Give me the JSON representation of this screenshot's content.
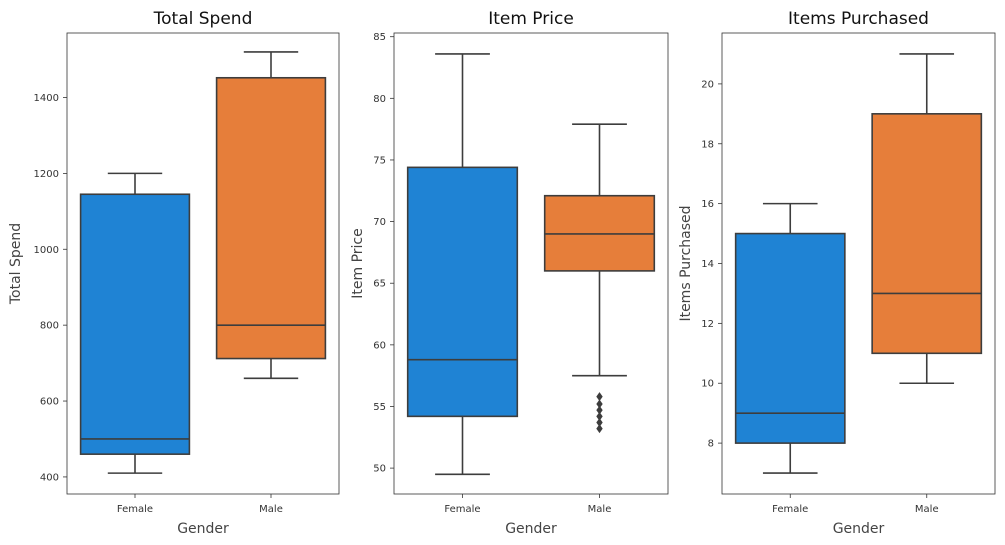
{
  "chart_data": [
    {
      "type": "box",
      "title": "Total Spend",
      "xlabel": "Gender",
      "ylabel": "Total Spend",
      "categories": [
        "Female",
        "Male"
      ],
      "ylim": [
        355,
        1570
      ],
      "yticks": [
        400,
        600,
        800,
        1000,
        1200,
        1400
      ],
      "boxes": [
        {
          "category": "Female",
          "min": 410,
          "q1": 460,
          "median": 500,
          "q3": 1145,
          "max": 1200,
          "outliers": []
        },
        {
          "category": "Male",
          "min": 660,
          "q1": 712,
          "median": 800,
          "q3": 1452,
          "max": 1520,
          "outliers": []
        }
      ],
      "colors": [
        "#1f83d4",
        "#e67e3a"
      ],
      "grid": false
    },
    {
      "type": "box",
      "title": "Item Price",
      "xlabel": "Gender",
      "ylabel": "Item Price",
      "categories": [
        "Female",
        "Male"
      ],
      "ylim": [
        47.9,
        85.3
      ],
      "yticks": [
        50,
        55,
        60,
        65,
        70,
        75,
        80,
        85
      ],
      "boxes": [
        {
          "category": "Female",
          "min": 49.5,
          "q1": 54.2,
          "median": 58.8,
          "q3": 74.4,
          "max": 83.6,
          "outliers": []
        },
        {
          "category": "Male",
          "min": 57.5,
          "q1": 66.0,
          "median": 69.0,
          "q3": 72.1,
          "max": 77.9,
          "outliers": [
            55.8,
            55.2,
            54.7,
            54.2,
            53.7,
            53.2
          ]
        }
      ],
      "colors": [
        "#1f83d4",
        "#e67e3a"
      ],
      "grid": false
    },
    {
      "type": "box",
      "title": "Items Purchased",
      "xlabel": "Gender",
      "ylabel": "Items Purchased",
      "categories": [
        "Female",
        "Male"
      ],
      "ylim": [
        6.3,
        21.7
      ],
      "yticks": [
        8,
        10,
        12,
        14,
        16,
        18,
        20
      ],
      "boxes": [
        {
          "category": "Female",
          "min": 7,
          "q1": 8,
          "median": 9,
          "q3": 15,
          "max": 16,
          "outliers": []
        },
        {
          "category": "Male",
          "min": 10,
          "q1": 11,
          "median": 13,
          "q3": 19,
          "max": 21,
          "outliers": []
        }
      ],
      "colors": [
        "#1f83d4",
        "#e67e3a"
      ],
      "grid": false
    }
  ]
}
